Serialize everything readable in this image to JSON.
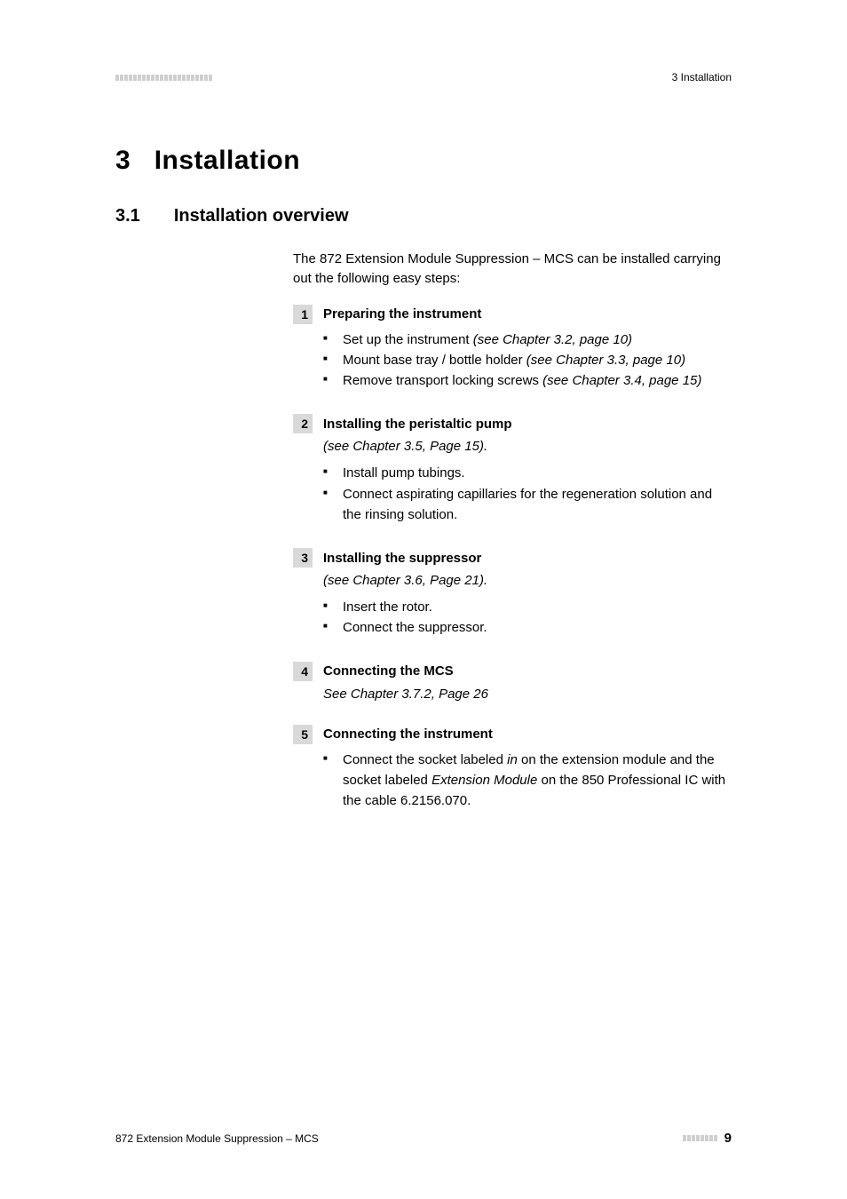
{
  "header": {
    "bar_segments": 22,
    "right_text": "3 Installation"
  },
  "chapter": {
    "number": "3",
    "title": "Installation"
  },
  "section": {
    "number": "3.1",
    "title": "Installation overview"
  },
  "intro": "The 872 Extension Module Suppression – MCS can be installed carrying out the following easy steps:",
  "steps": [
    {
      "num": "1",
      "title": "Preparing the instrument",
      "ref": "",
      "items": [
        {
          "plain": "Set up the instrument ",
          "italic": "(see Chapter 3.2, page 10)"
        },
        {
          "plain": "Mount base tray / bottle holder ",
          "italic": "(see Chapter 3.3, page 10)"
        },
        {
          "plain": "Remove transport locking screws ",
          "italic": "(see Chapter 3.4, page 15)"
        }
      ]
    },
    {
      "num": "2",
      "title": "Installing the peristaltic pump",
      "ref": "(see Chapter 3.5, Page 15).",
      "items": [
        {
          "plain": "Install pump tubings.",
          "italic": ""
        },
        {
          "plain": "Connect aspirating capillaries for the regeneration solution and the rinsing solution.",
          "italic": ""
        }
      ]
    },
    {
      "num": "3",
      "title": "Installing the suppressor",
      "ref": "(see Chapter 3.6, Page 21).",
      "items": [
        {
          "plain": "Insert the rotor.",
          "italic": ""
        },
        {
          "plain": "Connect the suppressor.",
          "italic": ""
        }
      ]
    },
    {
      "num": "4",
      "title": "Connecting the MCS",
      "ref": "See Chapter 3.7.2, Page 26",
      "items": []
    },
    {
      "num": "5",
      "title": "Connecting the instrument",
      "ref": "",
      "items": [
        {
          "plain": "Connect the socket labeled ",
          "italic1": "in",
          "plain2": " on the extension module and the socket labeled ",
          "italic2": "Extension Module",
          "plain3": " on the 850 Professional IC with the cable 6.2156.070."
        }
      ]
    }
  ],
  "footer": {
    "left": "872 Extension Module Suppression – MCS",
    "bar_segments": 8,
    "page": "9"
  },
  "colors": {
    "text": "#000000",
    "bar": "#cfcfcf",
    "stepnum_bg": "#d9d9d9",
    "background": "#ffffff"
  }
}
